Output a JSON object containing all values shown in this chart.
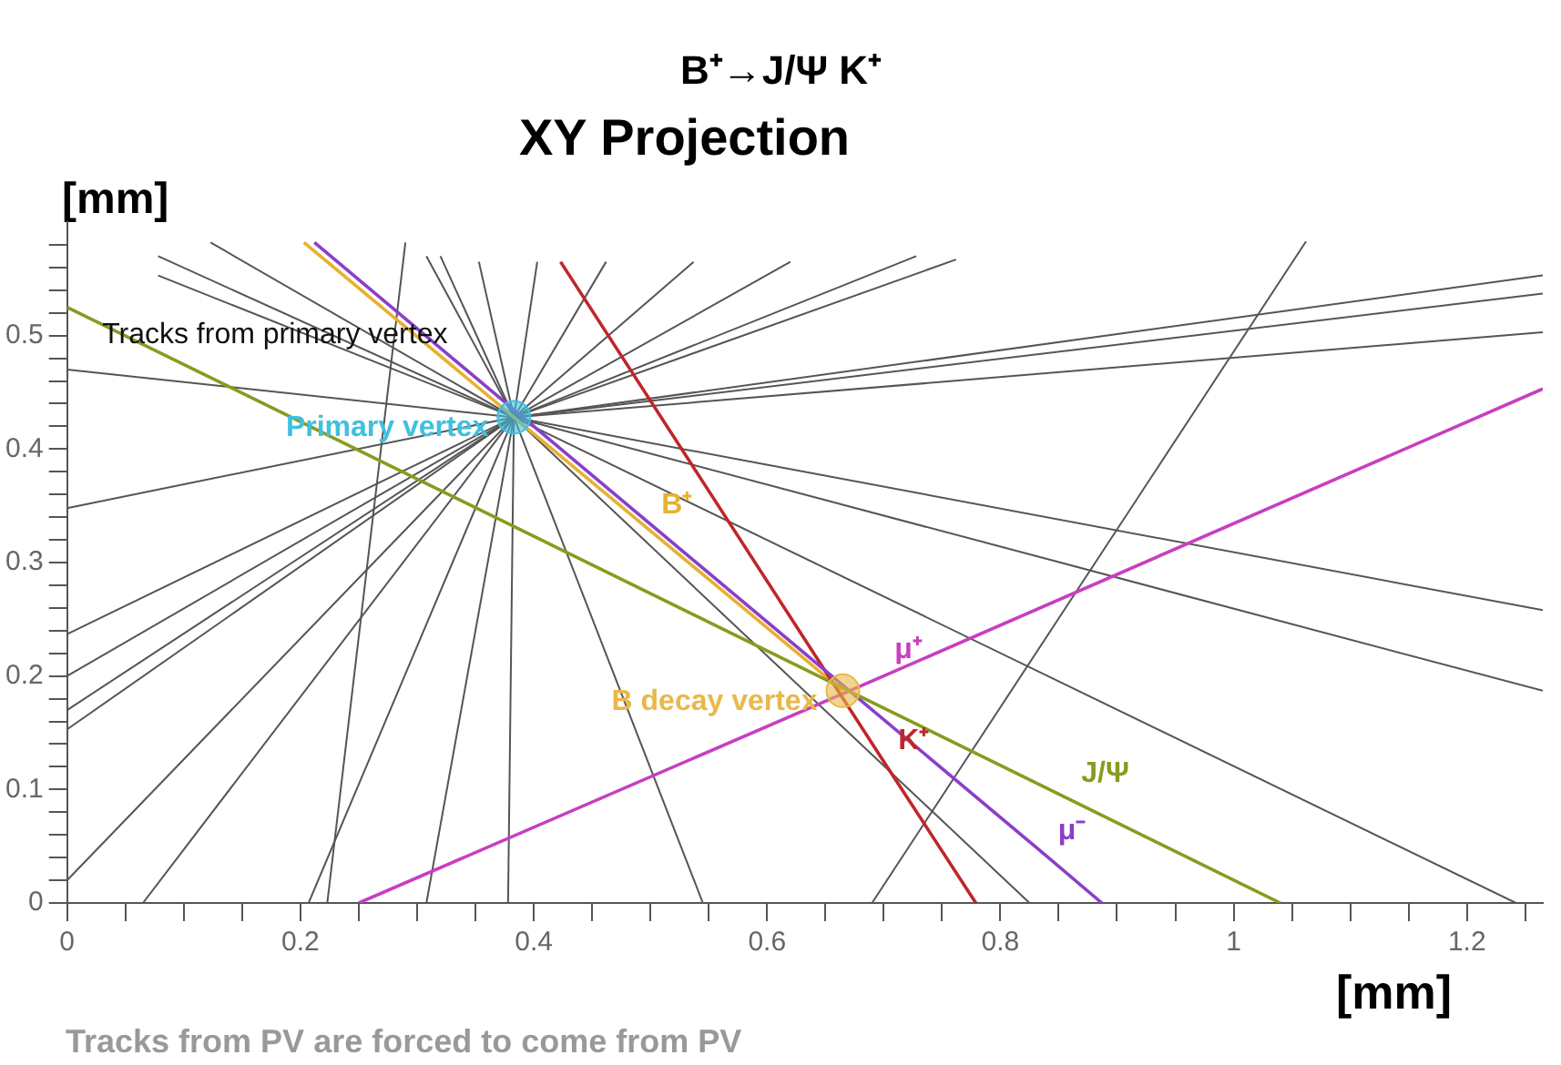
{
  "chart_data": {
    "type": "line",
    "title": "B⁺→J/Ψ K⁺",
    "subtitle": "XY Projection",
    "xlabel": "[mm]",
    "ylabel": "[mm]",
    "xlim": [
      0,
      1.265
    ],
    "ylim": [
      0,
      0.6
    ],
    "xticks": [
      0,
      {
        "value": 0.05,
        "label": null
      },
      {
        "value": 0.1,
        "label": null
      },
      {
        "value": 0.15,
        "label": null
      },
      0.2,
      {
        "value": 0.25,
        "label": null
      },
      {
        "value": 0.3,
        "label": null
      },
      {
        "value": 0.35,
        "label": null
      },
      0.4,
      {
        "value": 0.45,
        "label": null
      },
      {
        "value": 0.5,
        "label": null
      },
      {
        "value": 0.55,
        "label": null
      },
      0.6,
      {
        "value": 0.65,
        "label": null
      },
      {
        "value": 0.7,
        "label": null
      },
      {
        "value": 0.75,
        "label": null
      },
      0.8,
      {
        "value": 0.85,
        "label": null
      },
      {
        "value": 0.9,
        "label": null
      },
      {
        "value": 0.95,
        "label": null
      },
      1,
      {
        "value": 1.05,
        "label": null
      },
      {
        "value": 1.1,
        "label": null
      },
      {
        "value": 1.15,
        "label": null
      },
      1.2,
      {
        "value": 1.25,
        "label": null
      }
    ],
    "yticks": [
      0,
      {
        "value": 0.02,
        "label": null
      },
      {
        "value": 0.04,
        "label": null
      },
      {
        "value": 0.06,
        "label": null
      },
      {
        "value": 0.08,
        "label": null
      },
      0.1,
      {
        "value": 0.12,
        "label": null
      },
      {
        "value": 0.14,
        "label": null
      },
      {
        "value": 0.16,
        "label": null
      },
      {
        "value": 0.18,
        "label": null
      },
      0.2,
      {
        "value": 0.22,
        "label": null
      },
      {
        "value": 0.24,
        "label": null
      },
      {
        "value": 0.26,
        "label": null
      },
      {
        "value": 0.28,
        "label": null
      },
      0.3,
      {
        "value": 0.32,
        "label": null
      },
      {
        "value": 0.34,
        "label": null
      },
      {
        "value": 0.36,
        "label": null
      },
      {
        "value": 0.38,
        "label": null
      },
      0.4,
      {
        "value": 0.42,
        "label": null
      },
      {
        "value": 0.44,
        "label": null
      },
      {
        "value": 0.46,
        "label": null
      },
      {
        "value": 0.48,
        "label": null
      },
      0.5,
      {
        "value": 0.52,
        "label": null
      },
      {
        "value": 0.54,
        "label": null
      },
      {
        "value": 0.56,
        "label": null
      },
      {
        "value": 0.58,
        "label": null
      }
    ],
    "marker": "none",
    "line_style": "solid",
    "series": [
      {
        "color": "#555555",
        "x": [
          0.383,
          0.123
        ],
        "values": [
          0.428,
          0.582
        ]
      },
      {
        "color": "#555555",
        "x": [
          0.383,
          0.078
        ],
        "values": [
          0.428,
          0.57
        ]
      },
      {
        "color": "#555555",
        "x": [
          0.383,
          0.078
        ],
        "values": [
          0.428,
          0.553
        ]
      },
      {
        "color": "#555555",
        "x": [
          0.383,
          0
        ],
        "values": [
          0.428,
          0.47
        ]
      },
      {
        "color": "#555555",
        "x": [
          0.383,
          0
        ],
        "values": [
          0.428,
          0.348
        ]
      },
      {
        "color": "#555555",
        "x": [
          0.383,
          0
        ],
        "values": [
          0.428,
          0.237
        ]
      },
      {
        "color": "#555555",
        "x": [
          0.383,
          0
        ],
        "values": [
          0.428,
          0.2
        ]
      },
      {
        "color": "#555555",
        "x": [
          0.383,
          0
        ],
        "values": [
          0.428,
          0.17
        ]
      },
      {
        "color": "#555555",
        "x": [
          0.383,
          0
        ],
        "values": [
          0.428,
          0.153
        ]
      },
      {
        "color": "#555555",
        "x": [
          0.383,
          0
        ],
        "values": [
          0.428,
          0.02
        ]
      },
      {
        "color": "#555555",
        "x": [
          0.383,
          0.065
        ],
        "values": [
          0.428,
          0
        ]
      },
      {
        "color": "#555555",
        "x": [
          0.383,
          0.207
        ],
        "values": [
          0.428,
          0
        ]
      },
      {
        "color": "#555555",
        "x": [
          0.383,
          0.308
        ],
        "values": [
          0.428,
          0
        ]
      },
      {
        "color": "#555555",
        "x": [
          0.383,
          0.378
        ],
        "values": [
          0.428,
          0
        ]
      },
      {
        "color": "#555555",
        "x": [
          0.383,
          0.545
        ],
        "values": [
          0.428,
          0
        ]
      },
      {
        "color": "#555555",
        "x": [
          0.383,
          0.825
        ],
        "values": [
          0.428,
          0
        ]
      },
      {
        "color": "#555555",
        "x": [
          0.383,
          1.242
        ],
        "values": [
          0.428,
          0
        ]
      },
      {
        "color": "#555555",
        "x": [
          0.383,
          1.265
        ],
        "values": [
          0.428,
          0.258
        ]
      },
      {
        "color": "#555555",
        "x": [
          0.383,
          1.265
        ],
        "values": [
          0.428,
          0.187
        ]
      },
      {
        "color": "#555555",
        "x": [
          0.383,
          1.265
        ],
        "values": [
          0.428,
          0.553
        ]
      },
      {
        "color": "#555555",
        "x": [
          0.383,
          1.265
        ],
        "values": [
          0.428,
          0.537
        ]
      },
      {
        "color": "#555555",
        "x": [
          0.383,
          1.265
        ],
        "values": [
          0.428,
          0.503
        ]
      },
      {
        "color": "#555555",
        "x": [
          0.383,
          0.762
        ],
        "values": [
          0.428,
          0.567
        ]
      },
      {
        "color": "#555555",
        "x": [
          0.383,
          0.728
        ],
        "values": [
          0.428,
          0.57
        ]
      },
      {
        "color": "#555555",
        "x": [
          0.383,
          0.62
        ],
        "values": [
          0.428,
          0.565
        ]
      },
      {
        "color": "#555555",
        "x": [
          0.383,
          0.537
        ],
        "values": [
          0.428,
          0.565
        ]
      },
      {
        "color": "#555555",
        "x": [
          0.383,
          0.462
        ],
        "values": [
          0.428,
          0.565
        ]
      },
      {
        "color": "#555555",
        "x": [
          0.383,
          0.403
        ],
        "values": [
          0.428,
          0.565
        ]
      },
      {
        "color": "#555555",
        "x": [
          0.383,
          0.353
        ],
        "values": [
          0.428,
          0.565
        ]
      },
      {
        "color": "#555555",
        "x": [
          0.383,
          0.32
        ],
        "values": [
          0.428,
          0.57
        ]
      },
      {
        "color": "#555555",
        "x": [
          0.383,
          0.308
        ],
        "values": [
          0.428,
          0.57
        ]
      },
      {
        "color": "#555555",
        "x": [
          0.29,
          0.223
        ],
        "values": [
          0.582,
          0
        ]
      },
      {
        "color": "#555555",
        "x": [
          1.062,
          0.69
        ],
        "values": [
          0.583,
          0
        ]
      },
      {
        "name": "J/Ψ",
        "color": "#8a9a20",
        "x": [
          0,
          0.86,
          1.04
        ],
        "values": [
          0.525,
          0.091,
          0
        ]
      },
      {
        "name": "μ⁻",
        "color": "#8a3fc8",
        "x": [
          0.212,
          0.84,
          0.887
        ],
        "values": [
          0.582,
          0.041,
          0
        ]
      },
      {
        "name": "K⁺",
        "color": "#c0262b",
        "x": [
          0.423,
          0.703,
          0.779
        ],
        "values": [
          0.565,
          0.12,
          0
        ]
      },
      {
        "name": "μ⁺",
        "color": "#c73fc0",
        "x": [
          0.25,
          0.7,
          1.265
        ],
        "values": [
          0,
          0.2,
          0.453
        ]
      },
      {
        "name": "B⁺",
        "color": "#e8b030",
        "x": [
          0.203,
          0.5,
          0.665
        ],
        "values": [
          0.582,
          0.328,
          0.187
        ]
      },
      {
        "name": "Primary vertex",
        "type": "scatter",
        "marker": "circle",
        "color": "#40c0e0",
        "x": [
          0.383
        ],
        "values": [
          0.428
        ]
      },
      {
        "name": "B decay vertex",
        "type": "scatter",
        "marker": "circle",
        "color": "#e8b84a",
        "x": [
          0.665
        ],
        "values": [
          0.187
        ]
      }
    ],
    "annotations": [
      {
        "text": "Tracks from primary vertex",
        "x": 0.03,
        "y": 0.5
      },
      "Tracks from PV are forced to come from PV"
    ]
  }
}
